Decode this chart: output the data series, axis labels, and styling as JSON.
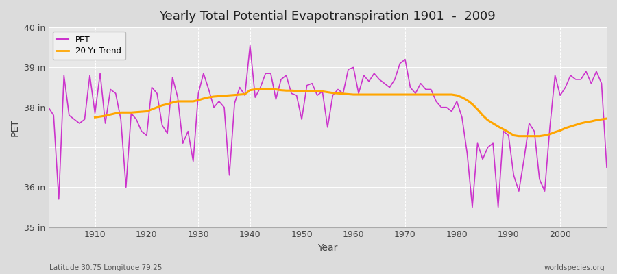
{
  "title": "Yearly Total Potential Evapotranspiration 1901  -  2009",
  "xlabel": "Year",
  "ylabel": "PET",
  "subtitle_left": "Latitude 30.75 Longitude 79.25",
  "subtitle_right": "worldspecies.org",
  "ylim": [
    35,
    40
  ],
  "yticks": [
    35,
    36,
    37,
    38,
    39,
    40
  ],
  "ytick_labels": [
    "35 in",
    "36 in",
    "",
    "38 in",
    "39 in",
    "40 in"
  ],
  "xlim": [
    1901,
    2009
  ],
  "xticks": [
    1910,
    1920,
    1930,
    1940,
    1950,
    1960,
    1970,
    1980,
    1990,
    2000
  ],
  "pet_color": "#cc33cc",
  "trend_color": "#ffa500",
  "fig_bg_color": "#dcdcdc",
  "plot_bg_color": "#e8e8e8",
  "grid_color": "#ffffff",
  "legend_bg": "#f0f0f0",
  "years": [
    1901,
    1902,
    1903,
    1904,
    1905,
    1906,
    1907,
    1908,
    1909,
    1910,
    1911,
    1912,
    1913,
    1914,
    1915,
    1916,
    1917,
    1918,
    1919,
    1920,
    1921,
    1922,
    1923,
    1924,
    1925,
    1926,
    1927,
    1928,
    1929,
    1930,
    1931,
    1932,
    1933,
    1934,
    1935,
    1936,
    1937,
    1938,
    1939,
    1940,
    1941,
    1942,
    1943,
    1944,
    1945,
    1946,
    1947,
    1948,
    1949,
    1950,
    1951,
    1952,
    1953,
    1954,
    1955,
    1956,
    1957,
    1958,
    1959,
    1960,
    1961,
    1962,
    1963,
    1964,
    1965,
    1966,
    1967,
    1968,
    1969,
    1970,
    1971,
    1972,
    1973,
    1974,
    1975,
    1976,
    1977,
    1978,
    1979,
    1980,
    1981,
    1982,
    1983,
    1984,
    1985,
    1986,
    1987,
    1988,
    1989,
    1990,
    1991,
    1992,
    1993,
    1994,
    1995,
    1996,
    1997,
    1998,
    1999,
    2000,
    2001,
    2002,
    2003,
    2004,
    2005,
    2006,
    2007,
    2008,
    2009
  ],
  "pet_values": [
    38.0,
    37.8,
    35.7,
    38.8,
    37.8,
    37.7,
    37.6,
    37.7,
    38.8,
    37.85,
    38.85,
    37.6,
    38.45,
    38.35,
    37.7,
    36.0,
    37.85,
    37.7,
    37.4,
    37.3,
    38.5,
    38.35,
    37.55,
    37.35,
    38.75,
    38.25,
    37.1,
    37.4,
    36.65,
    38.35,
    38.85,
    38.45,
    38.0,
    38.15,
    38.0,
    36.3,
    38.1,
    38.5,
    38.3,
    39.55,
    38.25,
    38.5,
    38.85,
    38.85,
    38.2,
    38.7,
    38.8,
    38.35,
    38.3,
    37.7,
    38.55,
    38.6,
    38.3,
    38.4,
    37.5,
    38.3,
    38.45,
    38.35,
    38.95,
    39.0,
    38.35,
    38.8,
    38.65,
    38.85,
    38.7,
    38.6,
    38.5,
    38.7,
    39.1,
    39.2,
    38.5,
    38.35,
    38.6,
    38.45,
    38.45,
    38.15,
    38.0,
    38.0,
    37.9,
    38.15,
    37.75,
    36.85,
    35.5,
    37.1,
    36.7,
    37.0,
    37.1,
    35.5,
    37.4,
    37.3,
    36.3,
    35.9,
    36.7,
    37.6,
    37.4,
    36.2,
    35.9,
    37.5,
    38.8,
    38.3,
    38.5,
    38.8,
    38.7,
    38.7,
    38.9,
    38.6,
    38.9,
    38.6,
    36.5
  ],
  "trend_years": [
    1910,
    1911,
    1912,
    1913,
    1914,
    1915,
    1916,
    1917,
    1918,
    1919,
    1920,
    1921,
    1922,
    1923,
    1924,
    1925,
    1926,
    1927,
    1928,
    1929,
    1930,
    1931,
    1932,
    1933,
    1934,
    1935,
    1936,
    1937,
    1938,
    1939,
    1940,
    1941,
    1942,
    1943,
    1944,
    1945,
    1946,
    1947,
    1948,
    1949,
    1950,
    1951,
    1952,
    1953,
    1954,
    1955,
    1956,
    1957,
    1958,
    1959,
    1960,
    1961,
    1962,
    1963,
    1964,
    1965,
    1966,
    1967,
    1968,
    1969,
    1970,
    1971,
    1972,
    1973,
    1974,
    1975,
    1976,
    1977,
    1978,
    1979,
    1980,
    1981,
    1982,
    1983,
    1984,
    1985,
    1986,
    1987,
    1988,
    1989,
    1990,
    1991,
    1992,
    1993,
    1994,
    1995,
    1996,
    1997,
    1998,
    1999,
    2000,
    2001,
    2002,
    2003,
    2004,
    2005,
    2006,
    2007,
    2008,
    2009
  ],
  "trend_values": [
    37.75,
    37.77,
    37.79,
    37.82,
    37.85,
    37.87,
    37.87,
    37.87,
    37.88,
    37.89,
    37.9,
    37.95,
    38.0,
    38.05,
    38.08,
    38.12,
    38.15,
    38.15,
    38.15,
    38.15,
    38.18,
    38.22,
    38.25,
    38.27,
    38.28,
    38.29,
    38.3,
    38.31,
    38.32,
    38.33,
    38.43,
    38.45,
    38.45,
    38.45,
    38.45,
    38.45,
    38.43,
    38.42,
    38.42,
    38.41,
    38.4,
    38.4,
    38.4,
    38.4,
    38.4,
    38.38,
    38.36,
    38.35,
    38.34,
    38.33,
    38.32,
    38.32,
    38.32,
    38.32,
    38.32,
    38.32,
    38.32,
    38.32,
    38.32,
    38.32,
    38.32,
    38.32,
    38.32,
    38.32,
    38.32,
    38.32,
    38.32,
    38.32,
    38.32,
    38.32,
    38.3,
    38.25,
    38.18,
    38.08,
    37.95,
    37.8,
    37.68,
    37.6,
    37.52,
    37.45,
    37.38,
    37.3,
    37.28,
    37.28,
    37.28,
    37.28,
    37.28,
    37.3,
    37.33,
    37.38,
    37.42,
    37.48,
    37.52,
    37.56,
    37.6,
    37.63,
    37.65,
    37.68,
    37.7,
    37.72
  ]
}
